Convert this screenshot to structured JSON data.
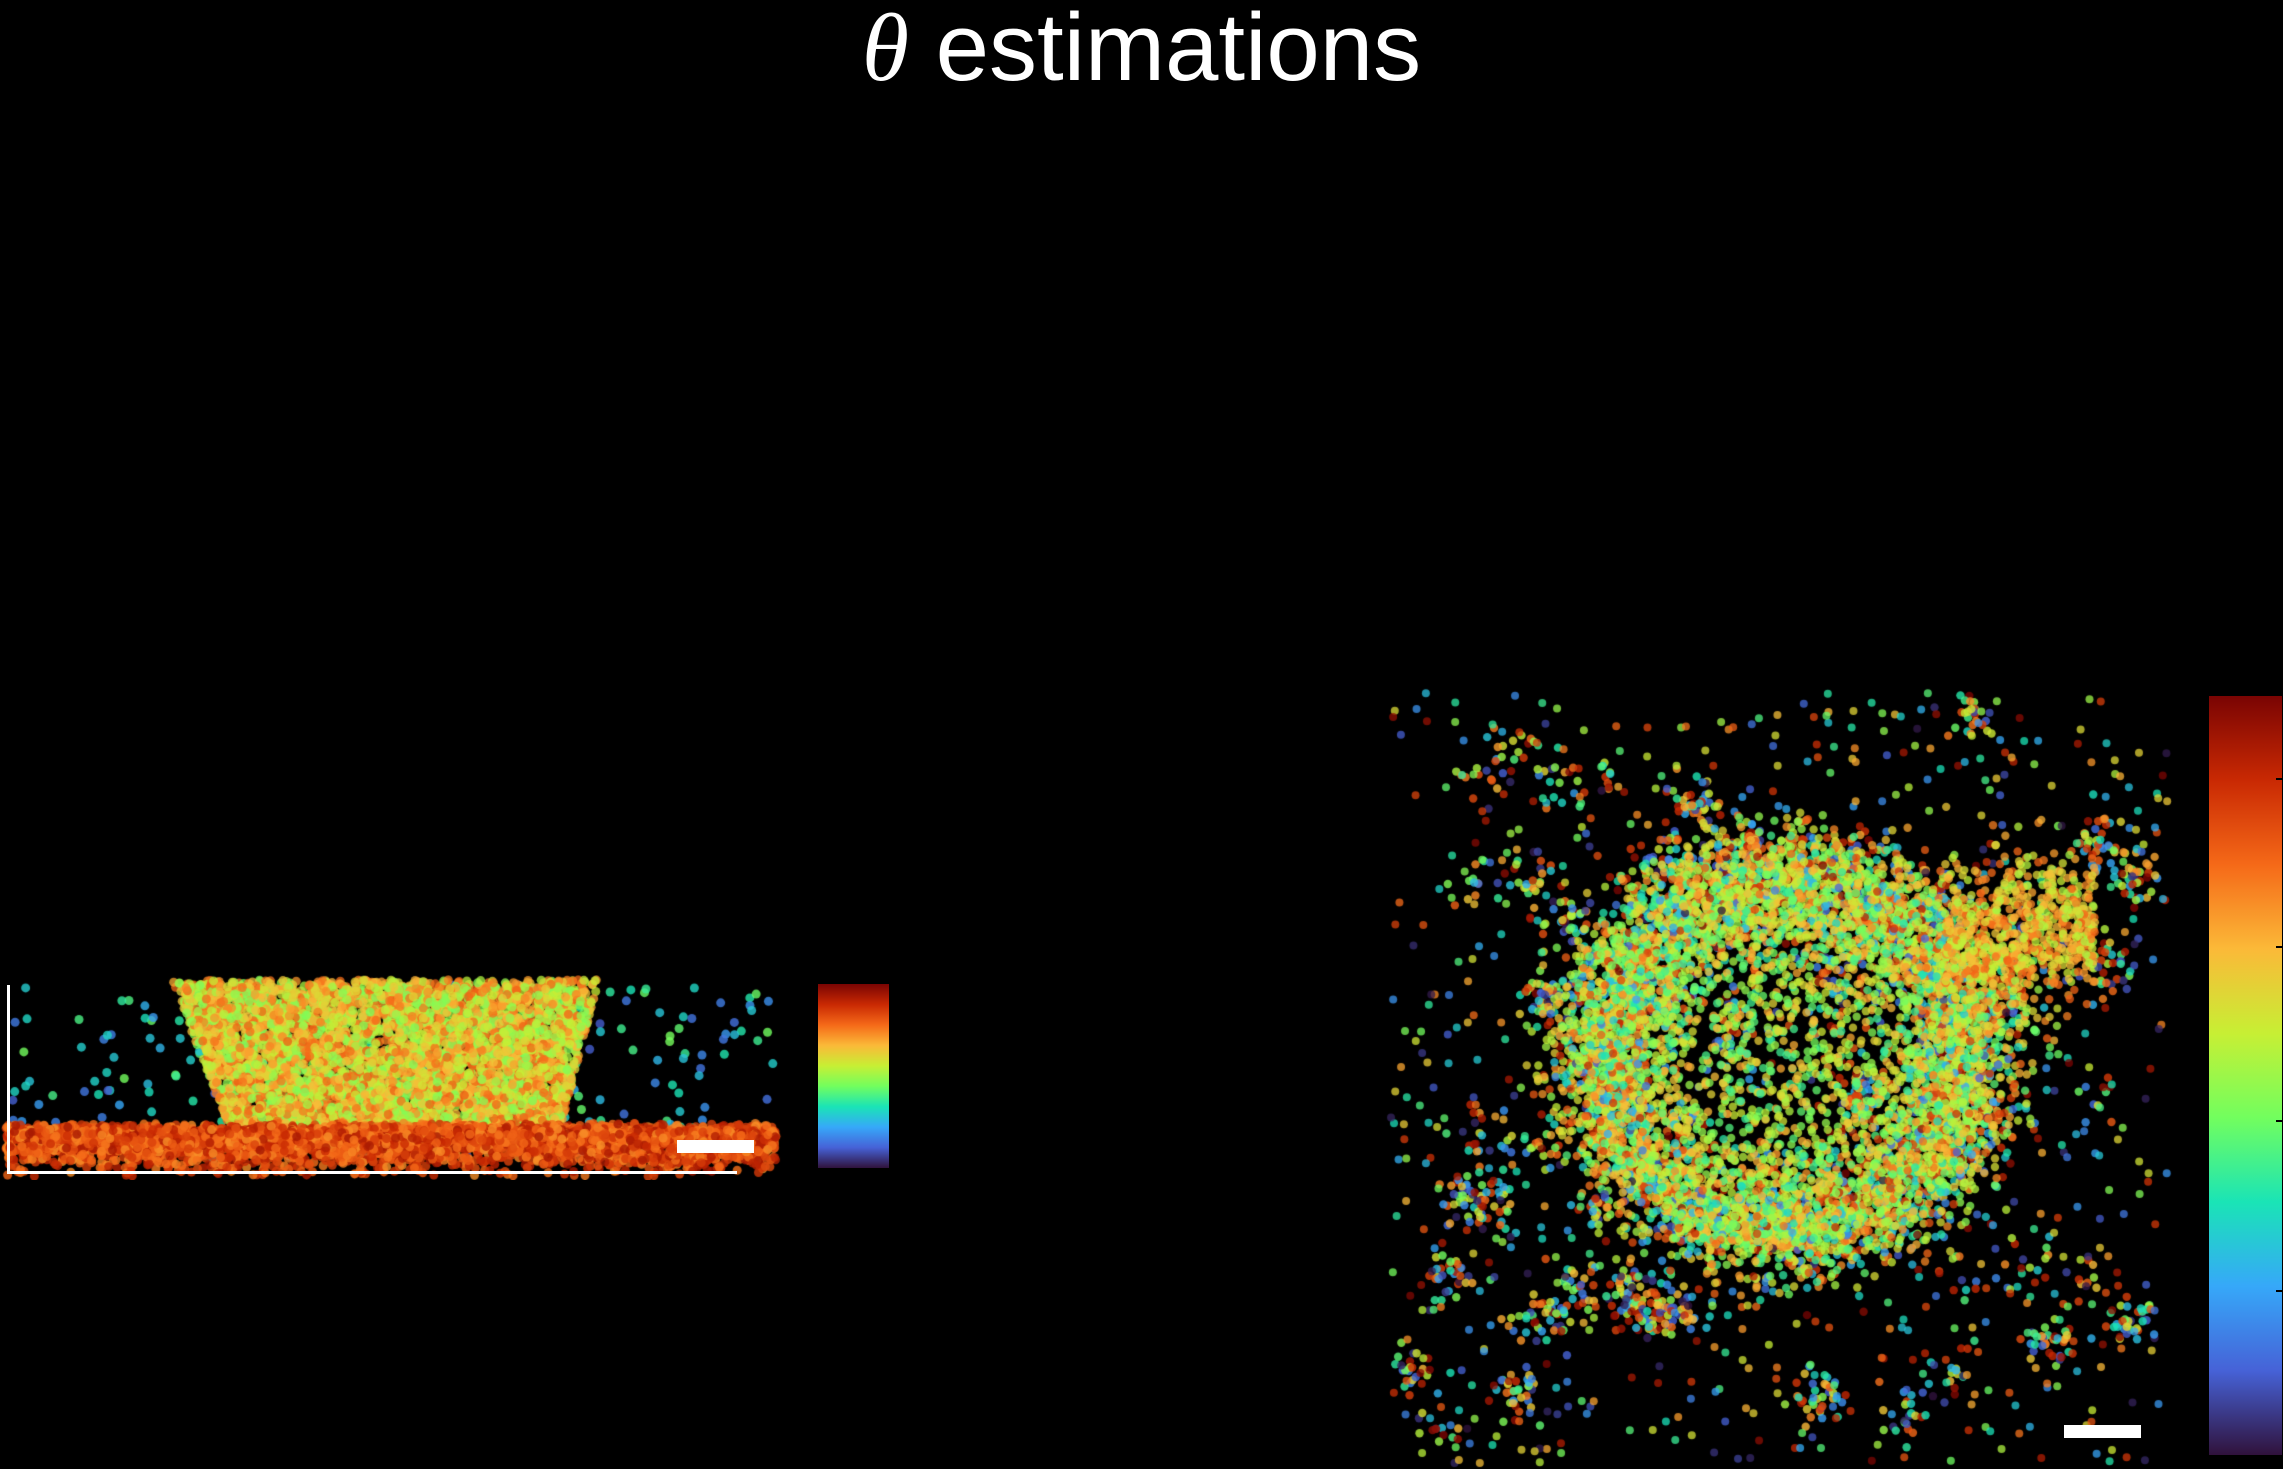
{
  "title": {
    "symbol": "θ",
    "text": "estimations"
  },
  "colormap": {
    "name": "turbo",
    "stops": [
      "#30123b",
      "#4662d7",
      "#36a8f9",
      "#1ae4b6",
      "#72fe5e",
      "#c7ef34",
      "#fbb938",
      "#f56918",
      "#c92903",
      "#7a0403"
    ]
  },
  "background_color": "#000000",
  "scale_bar_color": "#ffffff"
}
